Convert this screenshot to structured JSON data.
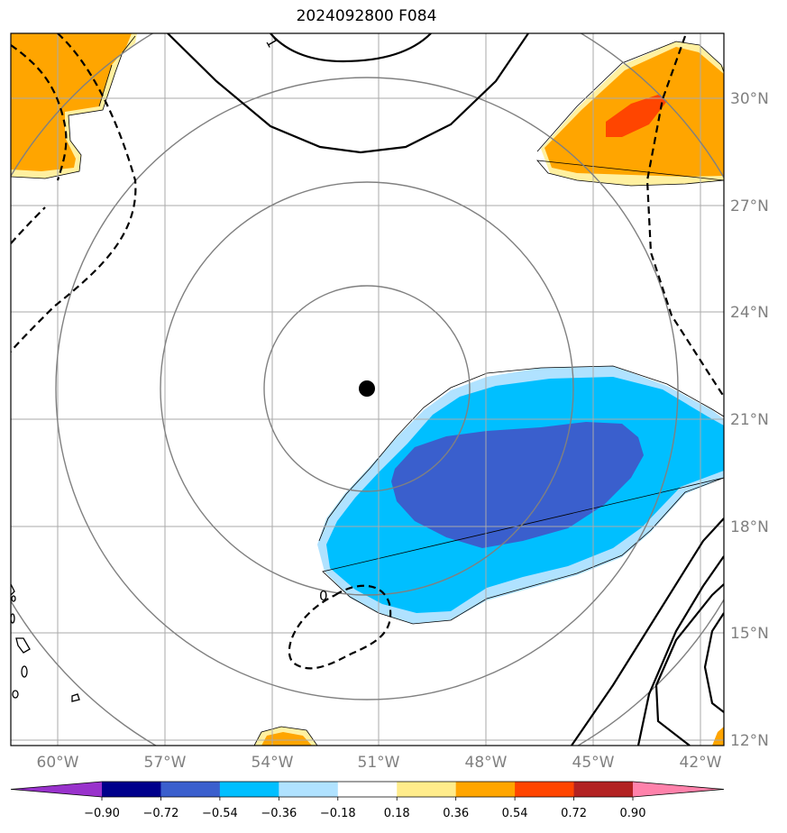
{
  "title": "2024092800 F084",
  "map": {
    "lon_labels": [
      "60°W",
      "57°W",
      "54°W",
      "51°W",
      "48°W",
      "45°W",
      "42°W"
    ],
    "lat_labels": [
      "30°N",
      "27°N",
      "24°N",
      "21°N",
      "18°N",
      "15°N",
      "12°N"
    ],
    "center_marker": {
      "lon": -51.3,
      "lat": 21.8
    },
    "contour_labels": [
      "1",
      "0"
    ]
  },
  "colorbar": {
    "ticks": [
      "−0.90",
      "−0.72",
      "−0.54",
      "−0.36",
      "−0.18",
      "0.18",
      "0.36",
      "0.54",
      "0.72",
      "0.90"
    ],
    "colors": [
      "#9932cc",
      "#00008b",
      "#3a5fcd",
      "#00bfff",
      "#b0e2ff",
      "#ffffff",
      "#ffec8b",
      "#ffa500",
      "#ff4500",
      "#b22222",
      "#ff82ab"
    ],
    "extend": "both"
  }
}
